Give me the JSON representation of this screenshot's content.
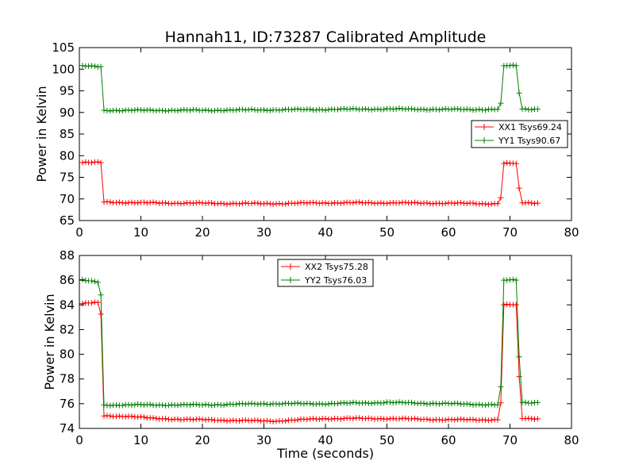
{
  "title": "Hannah11, ID:73287 Calibrated Amplitude",
  "chart_data": [
    {
      "type": "line",
      "xlabel": "",
      "ylabel": "Power in Kelvin",
      "xlim": [
        0,
        80
      ],
      "ylim": [
        65,
        105
      ],
      "xticks": [
        "0",
        "10",
        "20",
        "30",
        "40",
        "50",
        "60",
        "70",
        "80"
      ],
      "yticks": [
        "65",
        "70",
        "75",
        "80",
        "85",
        "90",
        "95",
        "100",
        "105"
      ],
      "grid": false,
      "legend_position": "right",
      "series": [
        {
          "name": "XX1 Tsys69.24",
          "color": "#ff0000",
          "x": [
            0.5,
            3.5,
            3.8,
            4.0,
            10,
            20,
            30,
            40,
            50,
            60,
            68.4,
            68.7,
            69.0,
            71.2,
            71.5,
            71.8,
            74.5
          ],
          "y": [
            78.4,
            78.4,
            76.5,
            69.3,
            69.1,
            69.0,
            68.9,
            69.1,
            69.1,
            69.0,
            68.9,
            73.0,
            78.2,
            78.2,
            72.5,
            69.1,
            69.1
          ]
        },
        {
          "name": "YY1 Tsys90.67",
          "color": "#008000",
          "x": [
            0.5,
            3.5,
            3.8,
            4.0,
            10,
            20,
            30,
            40,
            50,
            60,
            68.4,
            68.7,
            69.0,
            71.2,
            71.5,
            71.8,
            74.5
          ],
          "y": [
            100.7,
            100.6,
            98.5,
            90.5,
            90.5,
            90.5,
            90.6,
            90.7,
            90.8,
            90.7,
            90.7,
            95.0,
            100.8,
            100.8,
            94.5,
            90.8,
            90.8
          ]
        }
      ]
    },
    {
      "type": "line",
      "xlabel": "Time (seconds)",
      "ylabel": "Power in Kelvin",
      "xlim": [
        0,
        80
      ],
      "ylim": [
        74,
        88
      ],
      "xticks": [
        "0",
        "10",
        "20",
        "30",
        "40",
        "50",
        "60",
        "70",
        "80"
      ],
      "yticks": [
        "74",
        "76",
        "78",
        "80",
        "82",
        "84",
        "86",
        "88"
      ],
      "grid": false,
      "legend_position": "top-center",
      "series": [
        {
          "name": "XX2 Tsys75.28",
          "color": "#ff0000",
          "x": [
            0.5,
            3.3,
            3.7,
            4.0,
            8,
            12,
            20,
            30,
            32,
            40,
            50,
            60,
            68.4,
            68.7,
            69.0,
            71.2,
            71.5,
            71.8,
            74.5
          ],
          "y": [
            84.1,
            84.2,
            82.3,
            75.0,
            75.0,
            74.8,
            74.7,
            74.6,
            74.6,
            74.8,
            74.8,
            74.7,
            74.7,
            78.8,
            84.0,
            84.0,
            78.2,
            74.8,
            74.8
          ]
        },
        {
          "name": "YY2 Tsys76.03",
          "color": "#008000",
          "x": [
            0.5,
            3.3,
            3.7,
            4.0,
            10,
            20,
            30,
            40,
            50,
            60,
            68.4,
            68.7,
            69.0,
            71.2,
            71.5,
            71.8,
            74.5
          ],
          "y": [
            86.0,
            85.8,
            83.8,
            75.9,
            75.9,
            75.9,
            76.0,
            76.0,
            76.1,
            76.0,
            75.9,
            80.3,
            86.0,
            86.0,
            79.8,
            76.1,
            76.1
          ]
        }
      ]
    }
  ]
}
